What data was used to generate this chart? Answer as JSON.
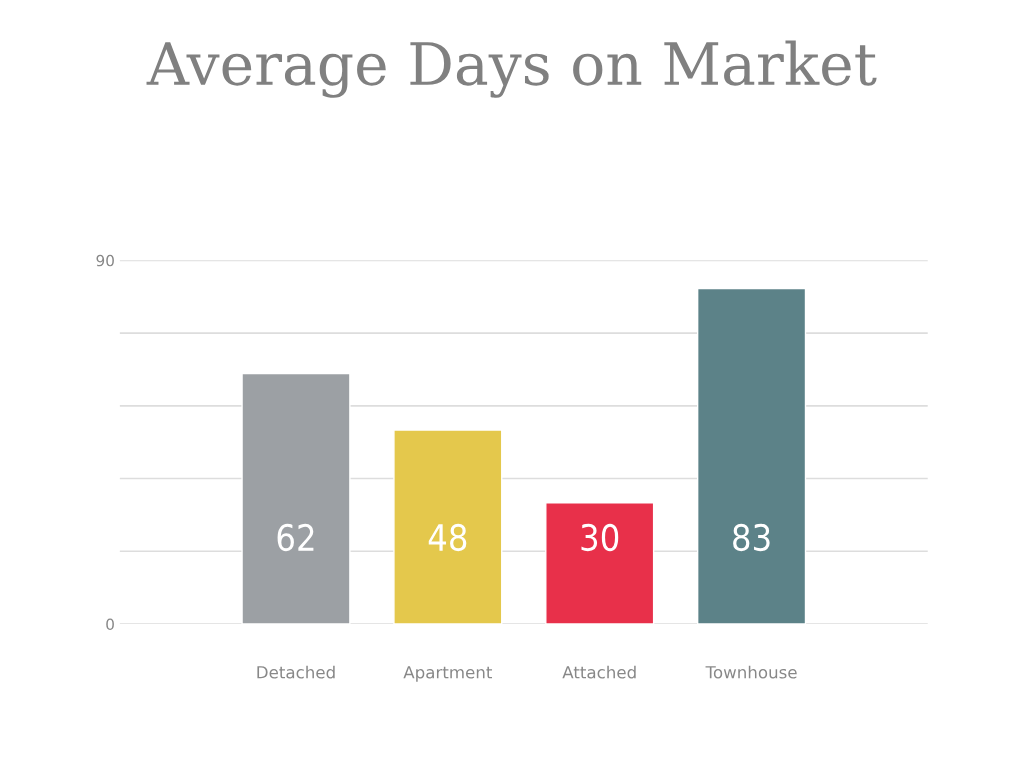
{
  "chart_data": {
    "type": "bar",
    "title": "Average Days on Market",
    "categories": [
      "Detached",
      "Apartment",
      "Attached",
      "Townhouse"
    ],
    "values": [
      62,
      48,
      30,
      83
    ],
    "colors": [
      "#9ca0a4",
      "#e4c84c",
      "#e8304a",
      "#5c8288"
    ],
    "ylim": [
      0,
      90
    ],
    "yticks": [
      0,
      {
        "value": 18,
        "label": null
      },
      {
        "value": 36,
        "label": null
      },
      {
        "value": 54,
        "label": null
      },
      {
        "value": 72,
        "label": null
      },
      90
    ],
    "grid": "y",
    "data_labels": true
  }
}
